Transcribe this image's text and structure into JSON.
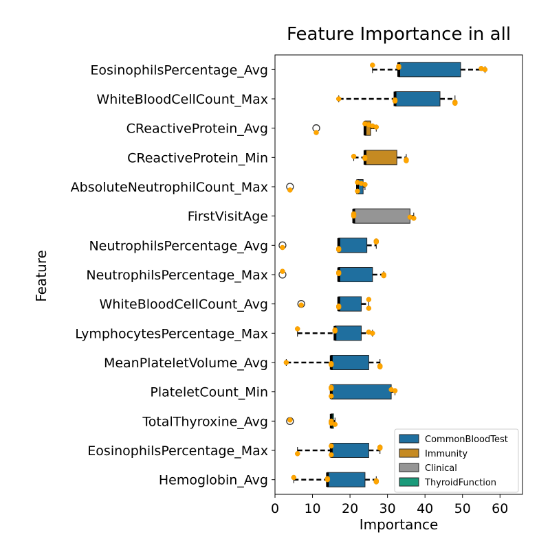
{
  "chart_data": {
    "type": "boxplot-horizontal",
    "title": "Feature Importance in all",
    "xlabel": "Importance",
    "ylabel": "Feature",
    "xlim": [
      0,
      66
    ],
    "xticks": [
      0,
      10,
      20,
      30,
      40,
      50,
      60
    ],
    "legend": {
      "position": "bottom-right",
      "entries": [
        {
          "label": "CommonBloodTest",
          "color": "#1f6f9f"
        },
        {
          "label": "Immunity",
          "color": "#c58a22"
        },
        {
          "label": "Clinical",
          "color": "#959595"
        },
        {
          "label": "ThyroidFunction",
          "color": "#1a9a7a"
        }
      ]
    },
    "features": [
      {
        "name": "EosinophilsPercentage_Avg",
        "group": "CommonBloodTest",
        "q1": 33,
        "median": 33,
        "q3": 49.5,
        "whisker_low": 26,
        "whisker_high": 56,
        "outliers": [],
        "points": [
          26,
          33,
          33,
          55,
          56
        ]
      },
      {
        "name": "WhiteBloodCellCount_Max",
        "group": "CommonBloodTest",
        "q1": 32,
        "median": 32,
        "q3": 44,
        "whisker_low": 17,
        "whisker_high": 48,
        "outliers": [],
        "points": [
          17,
          32,
          32,
          48,
          48
        ]
      },
      {
        "name": "CReactiveProtein_Avg",
        "group": "Immunity",
        "q1": 24,
        "median": 24,
        "q3": 25.5,
        "whisker_low": 24,
        "whisker_high": 27,
        "outliers": [
          11
        ],
        "points": [
          11,
          24,
          25,
          26,
          27
        ]
      },
      {
        "name": "CReactiveProtein_Min",
        "group": "Immunity",
        "q1": 24,
        "median": 24,
        "q3": 32.5,
        "whisker_low": 21,
        "whisker_high": 35,
        "outliers": [],
        "points": [
          21,
          24,
          24,
          35,
          35
        ]
      },
      {
        "name": "AbsoluteNeutrophilCount_Max",
        "group": "CommonBloodTest",
        "q1": 22,
        "median": 22,
        "q3": 23.5,
        "whisker_low": 22,
        "whisker_high": 24,
        "outliers": [
          4
        ],
        "points": [
          4,
          22,
          22,
          23,
          24
        ]
      },
      {
        "name": "FirstVisitAge",
        "group": "Clinical",
        "q1": 21,
        "median": 21,
        "q3": 36,
        "whisker_low": 21,
        "whisker_high": 37,
        "outliers": [],
        "points": [
          21,
          21,
          21,
          36,
          37
        ]
      },
      {
        "name": "NeutrophilsPercentage_Avg",
        "group": "CommonBloodTest",
        "q1": 17,
        "median": 17,
        "q3": 24.5,
        "whisker_low": 17,
        "whisker_high": 27,
        "outliers": [
          2
        ],
        "points": [
          2,
          17,
          17,
          27,
          27
        ]
      },
      {
        "name": "NeutrophilsPercentage_Max",
        "group": "CommonBloodTest",
        "q1": 17,
        "median": 17,
        "q3": 26,
        "whisker_low": 17,
        "whisker_high": 29,
        "outliers": [
          2
        ],
        "points": [
          2,
          17,
          17,
          29,
          29
        ]
      },
      {
        "name": "WhiteBloodCellCount_Avg",
        "group": "CommonBloodTest",
        "q1": 17,
        "median": 17,
        "q3": 23,
        "whisker_low": 17,
        "whisker_high": 25,
        "outliers": [
          7
        ],
        "points": [
          7,
          17,
          17,
          25,
          25
        ]
      },
      {
        "name": "LymphocytesPercentage_Max",
        "group": "CommonBloodTest",
        "q1": 16,
        "median": 16,
        "q3": 23,
        "whisker_low": 6,
        "whisker_high": 26,
        "outliers": [],
        "points": [
          6,
          16,
          16,
          25,
          26
        ]
      },
      {
        "name": "MeanPlateletVolume_Avg",
        "group": "CommonBloodTest",
        "q1": 15,
        "median": 15,
        "q3": 25,
        "whisker_low": 3,
        "whisker_high": 28,
        "outliers": [],
        "points": [
          3,
          15,
          15,
          28,
          28
        ]
      },
      {
        "name": "PlateletCount_Min",
        "group": "CommonBloodTest",
        "q1": 15,
        "median": 15,
        "q3": 31,
        "whisker_low": 15,
        "whisker_high": 32,
        "outliers": [],
        "points": [
          15,
          15,
          15,
          31,
          32
        ]
      },
      {
        "name": "TotalThyroxine_Avg",
        "group": "ThyroidFunction",
        "q1": 15,
        "median": 15,
        "q3": 15.6,
        "whisker_low": 15,
        "whisker_high": 16,
        "outliers": [
          4
        ],
        "points": [
          4,
          15,
          15,
          15,
          16
        ]
      },
      {
        "name": "EosinophilsPercentage_Max",
        "group": "CommonBloodTest",
        "q1": 15,
        "median": 15,
        "q3": 25,
        "whisker_low": 6,
        "whisker_high": 28,
        "outliers": [],
        "points": [
          6,
          15,
          15,
          28,
          28
        ]
      },
      {
        "name": "Hemoglobin_Avg",
        "group": "CommonBloodTest",
        "q1": 14,
        "median": 14,
        "q3": 24,
        "whisker_low": 5,
        "whisker_high": 27,
        "outliers": [],
        "points": [
          5,
          14,
          14,
          27,
          27
        ]
      }
    ]
  }
}
